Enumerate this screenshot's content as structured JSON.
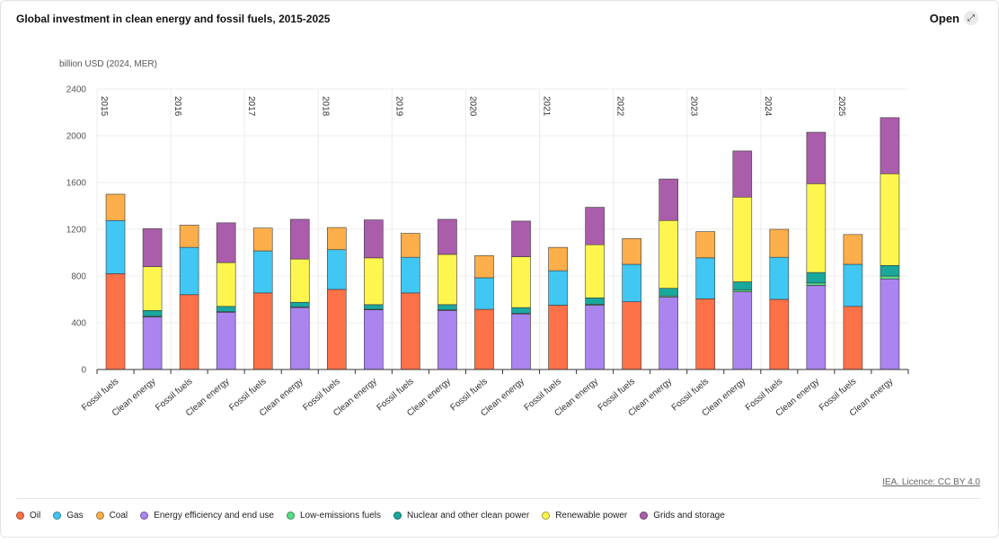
{
  "header": {
    "title": "Global investment in clean energy and fossil fuels, 2015-2025",
    "open_label": "Open",
    "open_icon": "expand-icon"
  },
  "footer": {
    "licence": "IEA. Licence: CC BY 4.0"
  },
  "chart_data": {
    "type": "bar",
    "stacked": true,
    "ylabel": "billion USD (2024, MER)",
    "ylim": [
      0,
      2400
    ],
    "yticks": [
      0,
      400,
      800,
      1200,
      1600,
      2000,
      2400
    ],
    "grid": true,
    "legend_position": "bottom",
    "years": [
      "2015",
      "2016",
      "2017",
      "2018",
      "2019",
      "2020",
      "2021",
      "2022",
      "2023",
      "2024",
      "2025"
    ],
    "categories": [
      "Fossil fuels",
      "Clean energy",
      "Fossil fuels",
      "Clean energy",
      "Fossil fuels",
      "Clean energy",
      "Fossil fuels",
      "Clean energy",
      "Fossil fuels",
      "Clean energy",
      "Fossil fuels",
      "Clean energy",
      "Fossil fuels",
      "Clean energy",
      "Fossil fuels",
      "Clean energy",
      "Fossil fuels",
      "Clean energy",
      "Fossil fuels",
      "Clean energy",
      "Fossil fuels",
      "Clean energy"
    ],
    "series": [
      {
        "name": "Oil",
        "color": "#fd7148",
        "values": [
          820,
          0,
          640,
          0,
          655,
          0,
          685,
          0,
          655,
          0,
          515,
          0,
          550,
          0,
          580,
          0,
          605,
          0,
          600,
          0,
          540,
          0
        ]
      },
      {
        "name": "Gas",
        "color": "#40c7f4",
        "values": [
          455,
          0,
          405,
          0,
          360,
          0,
          340,
          0,
          305,
          0,
          270,
          0,
          295,
          0,
          320,
          0,
          350,
          0,
          360,
          0,
          360,
          0
        ]
      },
      {
        "name": "Coal",
        "color": "#fcae4a",
        "values": [
          225,
          0,
          190,
          0,
          195,
          0,
          190,
          0,
          205,
          0,
          190,
          0,
          200,
          0,
          220,
          0,
          225,
          0,
          240,
          0,
          255,
          0
        ]
      },
      {
        "name": "Energy efficiency and end use",
        "color": "#ab84ef",
        "values": [
          0,
          450,
          0,
          490,
          0,
          530,
          0,
          510,
          0,
          505,
          0,
          475,
          0,
          550,
          0,
          620,
          0,
          665,
          0,
          720,
          0,
          775
        ]
      },
      {
        "name": "Low-emissions fuels",
        "color": "#57dd86",
        "values": [
          0,
          5,
          0,
          5,
          0,
          5,
          0,
          5,
          0,
          5,
          0,
          5,
          0,
          8,
          0,
          10,
          0,
          15,
          0,
          20,
          0,
          25
        ]
      },
      {
        "name": "Nuclear and other clean power",
        "color": "#1aa79e",
        "values": [
          0,
          50,
          0,
          45,
          0,
          40,
          0,
          40,
          0,
          45,
          0,
          50,
          0,
          55,
          0,
          65,
          0,
          70,
          0,
          90,
          0,
          90
        ]
      },
      {
        "name": "Renewable power",
        "color": "#fef64e",
        "values": [
          0,
          375,
          0,
          375,
          0,
          370,
          0,
          400,
          0,
          430,
          0,
          435,
          0,
          455,
          0,
          580,
          0,
          725,
          0,
          760,
          0,
          785
        ]
      },
      {
        "name": "Grids and storage",
        "color": "#aa5dab",
        "values": [
          0,
          325,
          0,
          340,
          0,
          340,
          0,
          325,
          0,
          300,
          0,
          305,
          0,
          320,
          0,
          355,
          0,
          395,
          0,
          440,
          0,
          480
        ]
      }
    ]
  }
}
